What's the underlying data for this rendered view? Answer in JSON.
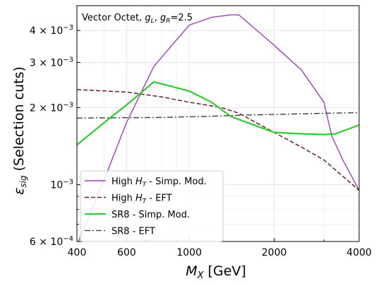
{
  "chart_data": {
    "type": "line",
    "annotation": {
      "prefix": "Vector Octet, ",
      "gl": "g",
      "gl_sub": "L",
      "sep": ", ",
      "gr": "g",
      "gr_sub": "R",
      "suffix": "=2.5"
    },
    "xlabel": {
      "main": "M",
      "sub": "X",
      "unit": "  [GeV]"
    },
    "ylabel": {
      "main": "ε",
      "sub": "sig",
      "rest": "  (Selection cuts)"
    },
    "x_scale": "log",
    "y_scale": "log",
    "xlim": [
      400,
      4000
    ],
    "ylim": [
      0.0006,
      0.005
    ],
    "grid": true,
    "legend_position": "bottom-left",
    "x_ticks": [
      {
        "value": 400,
        "label": "400"
      },
      {
        "value": 600,
        "label": "600"
      },
      {
        "value": 1000,
        "label": "1000"
      },
      {
        "value": 2000,
        "label": "2000"
      },
      {
        "value": 4000,
        "label": "4000"
      }
    ],
    "x_minor_ticks": [
      500,
      700,
      800,
      900,
      3000
    ],
    "y_ticks": [
      {
        "value": 0.0006,
        "mant": "6",
        "exp": "−4"
      },
      {
        "value": 0.001,
        "mant": "",
        "exp": "−3"
      },
      {
        "value": 0.002,
        "mant": "2",
        "exp": "−3"
      },
      {
        "value": 0.003,
        "mant": "3",
        "exp": "−3"
      },
      {
        "value": 0.004,
        "mant": "4",
        "exp": "−3"
      }
    ],
    "y_minor_ticks": [
      0.0007,
      0.0008,
      0.0009
    ],
    "series": [
      {
        "name_main": "High ",
        "name_var": "H",
        "name_sub": "T",
        "name_rest": " - Simp. Mod.",
        "color": "#9b3fc1",
        "style": "solid",
        "width": 1.4,
        "points": [
          [
            400,
            0.00058
          ],
          [
            500,
            0.00105
          ],
          [
            600,
            0.00175
          ],
          [
            750,
            0.0029
          ],
          [
            1000,
            0.0042
          ],
          [
            1200,
            0.0045
          ],
          [
            1400,
            0.0046
          ],
          [
            1500,
            0.0046
          ],
          [
            2000,
            0.0035
          ],
          [
            2500,
            0.0028
          ],
          [
            3000,
            0.0021
          ],
          [
            3200,
            0.00155
          ],
          [
            3500,
            0.00125
          ],
          [
            4000,
            0.00095
          ]
        ]
      },
      {
        "name_main": "High ",
        "name_var": "H",
        "name_sub": "T",
        "name_rest": " - EFT",
        "color": "#6b1d2a",
        "style": "dashed",
        "width": 1.5,
        "points": [
          [
            400,
            0.00235
          ],
          [
            600,
            0.0023
          ],
          [
            800,
            0.0022
          ],
          [
            1000,
            0.0021
          ],
          [
            1300,
            0.002
          ],
          [
            1500,
            0.0019
          ],
          [
            2000,
            0.0016
          ],
          [
            2500,
            0.0014
          ],
          [
            3000,
            0.00125
          ],
          [
            4000,
            0.00095
          ]
        ]
      },
      {
        "name_main": "SR8 - Simp. Mod.",
        "name_var": "",
        "name_sub": "",
        "name_rest": "",
        "color": "#2ecc2e",
        "style": "solid",
        "width": 2.2,
        "points": [
          [
            400,
            0.00143
          ],
          [
            500,
            0.00175
          ],
          [
            600,
            0.00205
          ],
          [
            750,
            0.00252
          ],
          [
            1000,
            0.00232
          ],
          [
            1200,
            0.0021
          ],
          [
            1400,
            0.00185
          ],
          [
            1600,
            0.00175
          ],
          [
            2000,
            0.0016
          ],
          [
            2500,
            0.00158
          ],
          [
            3000,
            0.00157
          ],
          [
            3300,
            0.00158
          ],
          [
            4000,
            0.00171
          ]
        ]
      },
      {
        "name_main": "SR8 - EFT",
        "name_var": "",
        "name_sub": "",
        "name_rest": "",
        "color": "#1f3d1f",
        "style": "dashdot",
        "width": 1.3,
        "points": [
          [
            400,
            0.00182
          ],
          [
            800,
            0.00183
          ],
          [
            1200,
            0.00185
          ],
          [
            1600,
            0.00187
          ],
          [
            2000,
            0.00188
          ],
          [
            3000,
            0.0019
          ],
          [
            4000,
            0.00191
          ]
        ]
      }
    ]
  }
}
